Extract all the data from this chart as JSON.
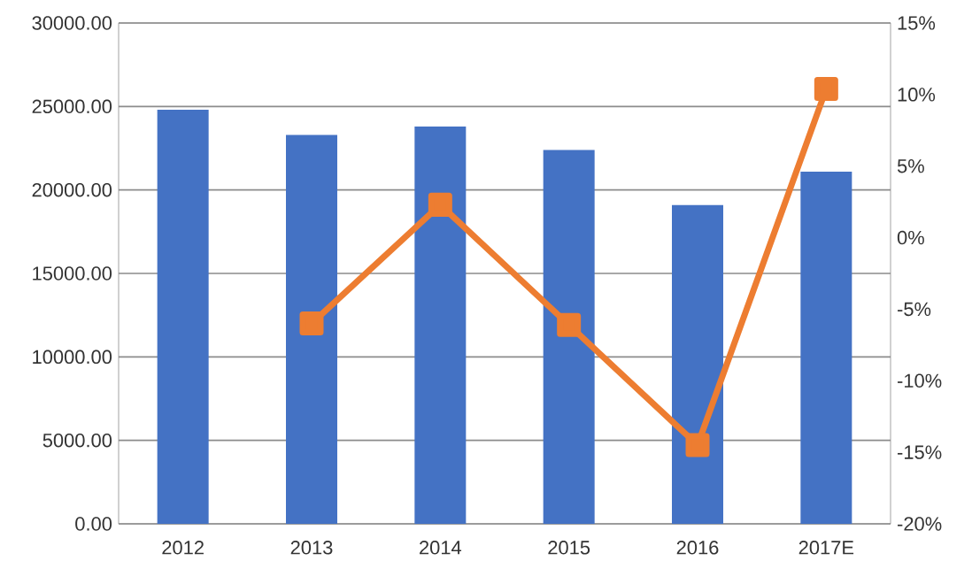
{
  "chart_data": {
    "type": "bar",
    "categories": [
      "2012",
      "2013",
      "2014",
      "2015",
      "2016",
      "2017E"
    ],
    "series": [
      {
        "color": "#4472c4",
        "values": [
          24800,
          23300,
          23800,
          22400,
          19100,
          21100
        ]
      },
      {
        "type": "line",
        "axis": "y2",
        "color": "#ed7d31",
        "marker": "square",
        "values": [
          null,
          -6.0,
          2.3,
          -6.1,
          -14.5,
          10.4
        ]
      }
    ],
    "ylim": [
      0,
      30000
    ],
    "yticks": [
      {
        "value": 0,
        "label": "0.00"
      },
      {
        "value": 5000,
        "label": "5000.00"
      },
      {
        "value": 10000,
        "label": "10000.00"
      },
      {
        "value": 15000,
        "label": "15000.00"
      },
      {
        "value": 20000,
        "label": "20000.00"
      },
      {
        "value": 25000,
        "label": "25000.00"
      },
      {
        "value": 30000,
        "label": "30000.00"
      }
    ],
    "y2lim": [
      -20,
      15
    ],
    "y2ticks": [
      {
        "value": -20,
        "label": "-20%"
      },
      {
        "value": -15,
        "label": "-15%"
      },
      {
        "value": -10,
        "label": "-10%"
      },
      {
        "value": -5,
        "label": "-5%"
      },
      {
        "value": 0,
        "label": "0%"
      },
      {
        "value": 5,
        "label": "5%"
      },
      {
        "value": 10,
        "label": "10%"
      },
      {
        "value": 15,
        "label": "15%"
      }
    ],
    "grid": "y"
  }
}
